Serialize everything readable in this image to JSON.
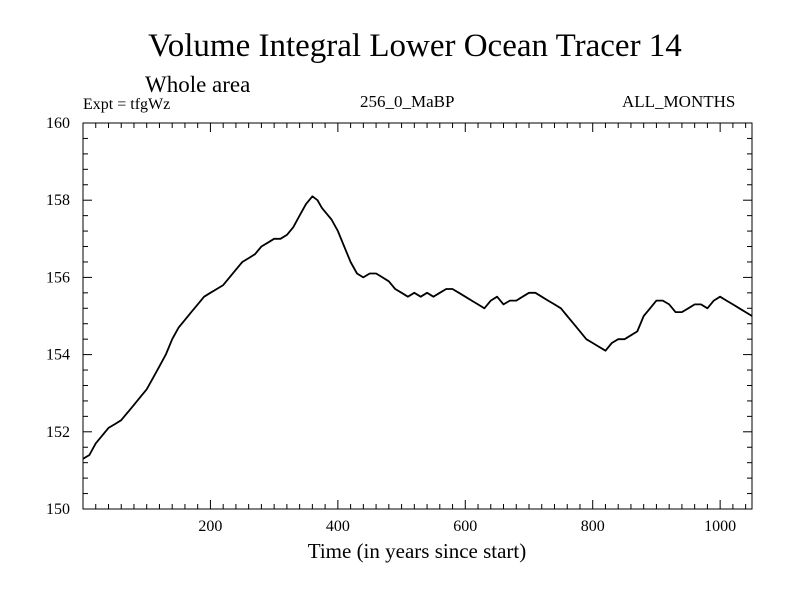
{
  "header": {
    "title": "Volume Integral Lower Ocean Tracer 14",
    "subtitle": "Whole area",
    "expt": "Expt = tfgWz",
    "period": "256_0_MaBP",
    "months": "ALL_MONTHS"
  },
  "chart_data": {
    "type": "line",
    "title": "Volume Integral Lower Ocean Tracer 14",
    "xlabel": "Time (in years since start)",
    "ylabel": "",
    "xlim": [
      0,
      1050
    ],
    "ylim": [
      150,
      160
    ],
    "xticks": [
      200,
      400,
      600,
      800,
      1000
    ],
    "yticks": [
      150,
      152,
      154,
      156,
      158,
      160
    ],
    "grid": false,
    "series": [
      {
        "name": "Lower Ocean Tracer 14",
        "x": [
          0,
          10,
          20,
          30,
          40,
          50,
          60,
          70,
          80,
          90,
          100,
          110,
          120,
          130,
          140,
          150,
          160,
          170,
          180,
          190,
          200,
          210,
          220,
          230,
          240,
          250,
          260,
          270,
          280,
          290,
          300,
          310,
          320,
          330,
          340,
          350,
          360,
          368,
          375,
          380,
          390,
          400,
          410,
          420,
          430,
          440,
          450,
          460,
          470,
          480,
          490,
          500,
          510,
          520,
          530,
          540,
          550,
          560,
          570,
          580,
          590,
          600,
          610,
          620,
          630,
          640,
          650,
          660,
          670,
          680,
          690,
          700,
          710,
          720,
          730,
          740,
          750,
          760,
          770,
          780,
          790,
          800,
          810,
          820,
          830,
          840,
          850,
          860,
          870,
          880,
          890,
          900,
          910,
          920,
          930,
          940,
          950,
          960,
          970,
          980,
          990,
          1000,
          1010,
          1020,
          1030,
          1040,
          1050
        ],
        "y": [
          151.3,
          151.4,
          151.7,
          151.9,
          152.1,
          152.2,
          152.3,
          152.5,
          152.7,
          152.9,
          153.1,
          153.4,
          153.7,
          154.0,
          154.4,
          154.7,
          154.9,
          155.1,
          155.3,
          155.5,
          155.6,
          155.7,
          155.8,
          156.0,
          156.2,
          156.4,
          156.5,
          156.6,
          156.8,
          156.9,
          157.0,
          157.0,
          157.1,
          157.3,
          157.6,
          157.9,
          158.1,
          158.0,
          157.8,
          157.7,
          157.5,
          157.2,
          156.8,
          156.4,
          156.1,
          156.0,
          156.1,
          156.1,
          156.0,
          155.9,
          155.7,
          155.6,
          155.5,
          155.6,
          155.5,
          155.6,
          155.5,
          155.6,
          155.7,
          155.7,
          155.6,
          155.5,
          155.4,
          155.3,
          155.2,
          155.4,
          155.5,
          155.3,
          155.4,
          155.4,
          155.5,
          155.6,
          155.6,
          155.5,
          155.4,
          155.3,
          155.2,
          155.0,
          154.8,
          154.6,
          154.4,
          154.3,
          154.2,
          154.1,
          154.3,
          154.4,
          154.4,
          154.5,
          154.6,
          155.0,
          155.2,
          155.4,
          155.4,
          155.3,
          155.1,
          155.1,
          155.2,
          155.3,
          155.3,
          155.2,
          155.4,
          155.5,
          155.4,
          155.3,
          155.2,
          155.1,
          155.0
        ]
      }
    ]
  }
}
